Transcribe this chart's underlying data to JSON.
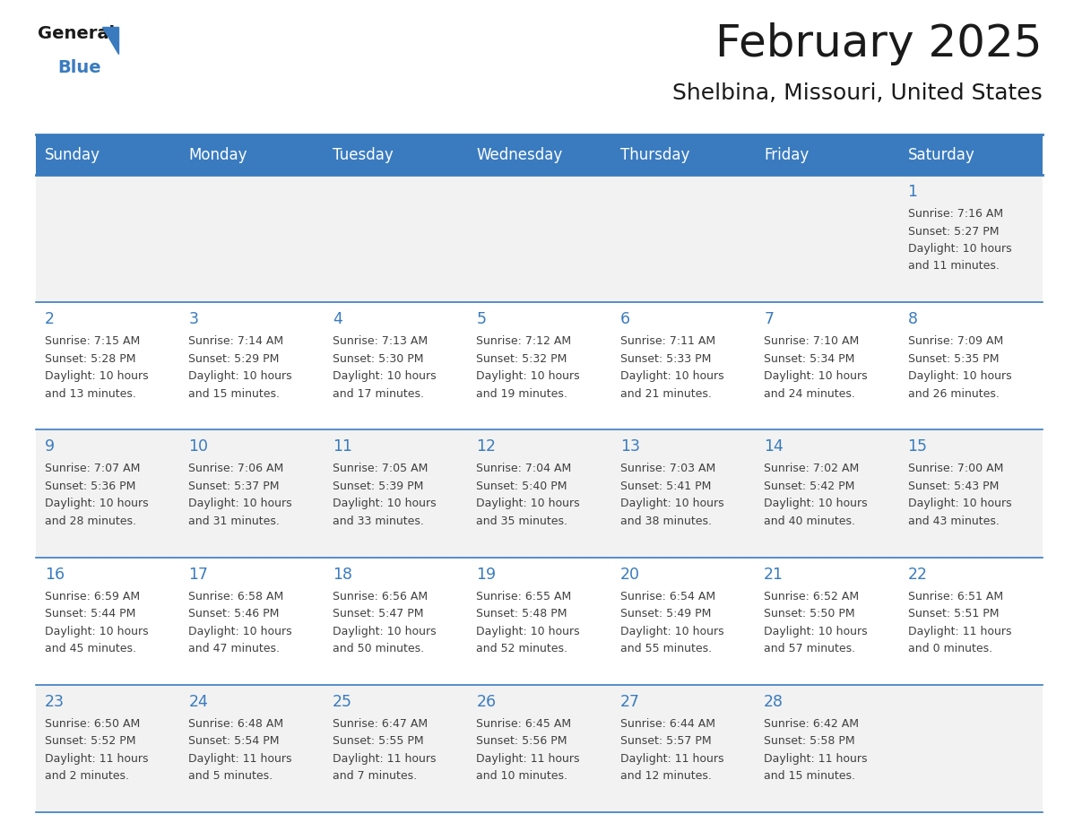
{
  "title": "February 2025",
  "subtitle": "Shelbina, Missouri, United States",
  "header_bg": "#3a7bbf",
  "header_text_color": "#ffffff",
  "cell_bg_light": "#f2f2f2",
  "cell_bg_white": "#ffffff",
  "day_number_color": "#3a7bbf",
  "info_text_color": "#404040",
  "grid_line_color": "#3a7bbf",
  "weekdays": [
    "Sunday",
    "Monday",
    "Tuesday",
    "Wednesday",
    "Thursday",
    "Friday",
    "Saturday"
  ],
  "days_data": [
    {
      "day": 1,
      "col": 6,
      "row": 0,
      "sunrise": "7:16 AM",
      "sunset": "5:27 PM",
      "daylight_h": "10 hours",
      "daylight_m": "and 11 minutes."
    },
    {
      "day": 2,
      "col": 0,
      "row": 1,
      "sunrise": "7:15 AM",
      "sunset": "5:28 PM",
      "daylight_h": "10 hours",
      "daylight_m": "and 13 minutes."
    },
    {
      "day": 3,
      "col": 1,
      "row": 1,
      "sunrise": "7:14 AM",
      "sunset": "5:29 PM",
      "daylight_h": "10 hours",
      "daylight_m": "and 15 minutes."
    },
    {
      "day": 4,
      "col": 2,
      "row": 1,
      "sunrise": "7:13 AM",
      "sunset": "5:30 PM",
      "daylight_h": "10 hours",
      "daylight_m": "and 17 minutes."
    },
    {
      "day": 5,
      "col": 3,
      "row": 1,
      "sunrise": "7:12 AM",
      "sunset": "5:32 PM",
      "daylight_h": "10 hours",
      "daylight_m": "and 19 minutes."
    },
    {
      "day": 6,
      "col": 4,
      "row": 1,
      "sunrise": "7:11 AM",
      "sunset": "5:33 PM",
      "daylight_h": "10 hours",
      "daylight_m": "and 21 minutes."
    },
    {
      "day": 7,
      "col": 5,
      "row": 1,
      "sunrise": "7:10 AM",
      "sunset": "5:34 PM",
      "daylight_h": "10 hours",
      "daylight_m": "and 24 minutes."
    },
    {
      "day": 8,
      "col": 6,
      "row": 1,
      "sunrise": "7:09 AM",
      "sunset": "5:35 PM",
      "daylight_h": "10 hours",
      "daylight_m": "and 26 minutes."
    },
    {
      "day": 9,
      "col": 0,
      "row": 2,
      "sunrise": "7:07 AM",
      "sunset": "5:36 PM",
      "daylight_h": "10 hours",
      "daylight_m": "and 28 minutes."
    },
    {
      "day": 10,
      "col": 1,
      "row": 2,
      "sunrise": "7:06 AM",
      "sunset": "5:37 PM",
      "daylight_h": "10 hours",
      "daylight_m": "and 31 minutes."
    },
    {
      "day": 11,
      "col": 2,
      "row": 2,
      "sunrise": "7:05 AM",
      "sunset": "5:39 PM",
      "daylight_h": "10 hours",
      "daylight_m": "and 33 minutes."
    },
    {
      "day": 12,
      "col": 3,
      "row": 2,
      "sunrise": "7:04 AM",
      "sunset": "5:40 PM",
      "daylight_h": "10 hours",
      "daylight_m": "and 35 minutes."
    },
    {
      "day": 13,
      "col": 4,
      "row": 2,
      "sunrise": "7:03 AM",
      "sunset": "5:41 PM",
      "daylight_h": "10 hours",
      "daylight_m": "and 38 minutes."
    },
    {
      "day": 14,
      "col": 5,
      "row": 2,
      "sunrise": "7:02 AM",
      "sunset": "5:42 PM",
      "daylight_h": "10 hours",
      "daylight_m": "and 40 minutes."
    },
    {
      "day": 15,
      "col": 6,
      "row": 2,
      "sunrise": "7:00 AM",
      "sunset": "5:43 PM",
      "daylight_h": "10 hours",
      "daylight_m": "and 43 minutes."
    },
    {
      "day": 16,
      "col": 0,
      "row": 3,
      "sunrise": "6:59 AM",
      "sunset": "5:44 PM",
      "daylight_h": "10 hours",
      "daylight_m": "and 45 minutes."
    },
    {
      "day": 17,
      "col": 1,
      "row": 3,
      "sunrise": "6:58 AM",
      "sunset": "5:46 PM",
      "daylight_h": "10 hours",
      "daylight_m": "and 47 minutes."
    },
    {
      "day": 18,
      "col": 2,
      "row": 3,
      "sunrise": "6:56 AM",
      "sunset": "5:47 PM",
      "daylight_h": "10 hours",
      "daylight_m": "and 50 minutes."
    },
    {
      "day": 19,
      "col": 3,
      "row": 3,
      "sunrise": "6:55 AM",
      "sunset": "5:48 PM",
      "daylight_h": "10 hours",
      "daylight_m": "and 52 minutes."
    },
    {
      "day": 20,
      "col": 4,
      "row": 3,
      "sunrise": "6:54 AM",
      "sunset": "5:49 PM",
      "daylight_h": "10 hours",
      "daylight_m": "and 55 minutes."
    },
    {
      "day": 21,
      "col": 5,
      "row": 3,
      "sunrise": "6:52 AM",
      "sunset": "5:50 PM",
      "daylight_h": "10 hours",
      "daylight_m": "and 57 minutes."
    },
    {
      "day": 22,
      "col": 6,
      "row": 3,
      "sunrise": "6:51 AM",
      "sunset": "5:51 PM",
      "daylight_h": "11 hours",
      "daylight_m": "and 0 minutes."
    },
    {
      "day": 23,
      "col": 0,
      "row": 4,
      "sunrise": "6:50 AM",
      "sunset": "5:52 PM",
      "daylight_h": "11 hours",
      "daylight_m": "and 2 minutes."
    },
    {
      "day": 24,
      "col": 1,
      "row": 4,
      "sunrise": "6:48 AM",
      "sunset": "5:54 PM",
      "daylight_h": "11 hours",
      "daylight_m": "and 5 minutes."
    },
    {
      "day": 25,
      "col": 2,
      "row": 4,
      "sunrise": "6:47 AM",
      "sunset": "5:55 PM",
      "daylight_h": "11 hours",
      "daylight_m": "and 7 minutes."
    },
    {
      "day": 26,
      "col": 3,
      "row": 4,
      "sunrise": "6:45 AM",
      "sunset": "5:56 PM",
      "daylight_h": "11 hours",
      "daylight_m": "and 10 minutes."
    },
    {
      "day": 27,
      "col": 4,
      "row": 4,
      "sunrise": "6:44 AM",
      "sunset": "5:57 PM",
      "daylight_h": "11 hours",
      "daylight_m": "and 12 minutes."
    },
    {
      "day": 28,
      "col": 5,
      "row": 4,
      "sunrise": "6:42 AM",
      "sunset": "5:58 PM",
      "daylight_h": "11 hours",
      "daylight_m": "and 15 minutes."
    }
  ],
  "num_rows": 5,
  "num_cols": 7,
  "fig_width": 11.88,
  "fig_height": 9.18,
  "logo_general_color": "#1a1a1a",
  "logo_blue_color": "#3a7bbf",
  "title_color": "#1a1a1a",
  "subtitle_color": "#1a1a1a"
}
